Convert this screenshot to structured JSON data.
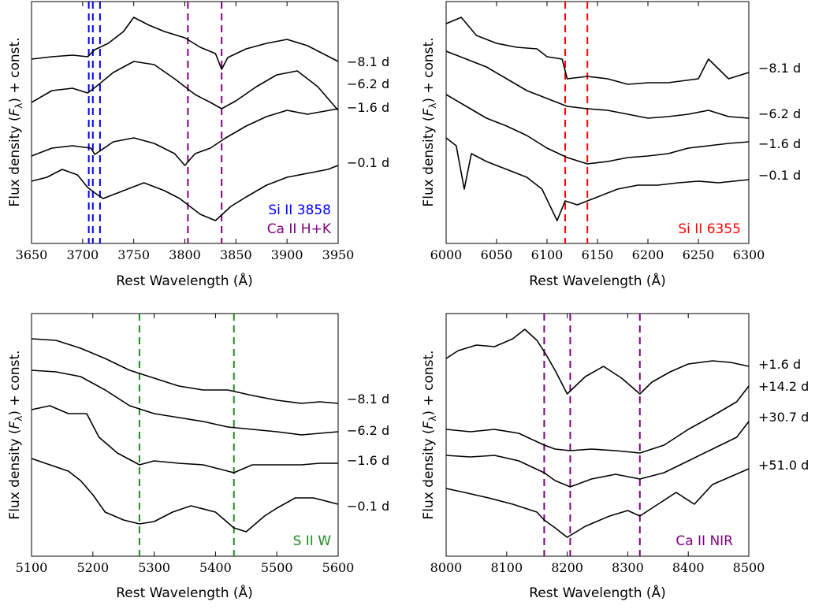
{
  "chart_data": [
    {
      "type": "line",
      "xlabel": "Rest Wavelength (Å)",
      "ylabel": "Flux density (F_λ) + const.",
      "xlim": [
        3650,
        3950
      ],
      "xticks": [
        "3650",
        "3700",
        "3750",
        "3800",
        "3850",
        "3900",
        "3950"
      ],
      "line_markers": [
        {
          "wavelength": 3706,
          "color": "#0000ff"
        },
        {
          "wavelength": 3710,
          "color": "#0000ff"
        },
        {
          "wavelength": 3717,
          "color": "#0000ff"
        },
        {
          "wavelength": 3803,
          "color": "#800080"
        },
        {
          "wavelength": 3836,
          "color": "#800080"
        }
      ],
      "annotations": [
        {
          "text": "Si II 3858",
          "color": "#0000ff"
        },
        {
          "text": "Ca II H+K",
          "color": "#800080"
        }
      ],
      "series": [
        {
          "label": "−8.1 d",
          "x": [
            3650,
            3670,
            3690,
            3705,
            3712,
            3725,
            3740,
            3750,
            3765,
            3780,
            3800,
            3815,
            3830,
            3836,
            3842,
            3860,
            3880,
            3900,
            3920,
            3950
          ],
          "y": [
            75,
            72,
            70,
            72,
            63,
            55,
            40,
            22,
            32,
            40,
            48,
            60,
            68,
            88,
            73,
            62,
            55,
            50,
            58,
            78
          ]
        },
        {
          "label": "−6.2 d",
          "x": [
            3650,
            3670,
            3690,
            3705,
            3715,
            3730,
            3750,
            3770,
            3790,
            3810,
            3825,
            3836,
            3850,
            3870,
            3890,
            3910,
            3930,
            3950
          ],
          "y": [
            130,
            115,
            112,
            118,
            108,
            92,
            78,
            82,
            100,
            120,
            130,
            138,
            128,
            110,
            95,
            90,
            110,
            140
          ]
        },
        {
          "label": "−1.6 d",
          "x": [
            3650,
            3670,
            3690,
            3708,
            3712,
            3730,
            3750,
            3770,
            3790,
            3800,
            3810,
            3825,
            3840,
            3860,
            3880,
            3900,
            3920,
            3950
          ],
          "y": [
            198,
            188,
            185,
            188,
            196,
            180,
            175,
            182,
            195,
            210,
            195,
            188,
            175,
            160,
            148,
            140,
            145,
            138
          ]
        },
        {
          "label": "−0.1 d",
          "x": [
            3650,
            3665,
            3680,
            3695,
            3705,
            3712,
            3720,
            3740,
            3760,
            3780,
            3795,
            3805,
            3815,
            3830,
            3845,
            3860,
            3880,
            3900,
            3920,
            3940,
            3950
          ],
          "y": [
            230,
            225,
            215,
            222,
            238,
            245,
            252,
            242,
            232,
            242,
            252,
            262,
            272,
            280,
            262,
            250,
            235,
            225,
            220,
            215,
            210
          ]
        }
      ]
    },
    {
      "type": "line",
      "xlabel": "Rest Wavelength (Å)",
      "ylabel": "Flux density (F_λ) + const.",
      "xlim": [
        6000,
        6300
      ],
      "xticks": [
        "6000",
        "6050",
        "6100",
        "6150",
        "6200",
        "6250",
        "6300"
      ],
      "line_markers": [
        {
          "wavelength": 6118,
          "color": "#ff0000"
        },
        {
          "wavelength": 6140,
          "color": "#ff0000"
        }
      ],
      "annotations": [
        {
          "text": "Si II 6355",
          "color": "#ff0000"
        }
      ],
      "series": [
        {
          "label": "−8.1 d",
          "x": [
            6000,
            6015,
            6030,
            6050,
            6070,
            6090,
            6100,
            6115,
            6120,
            6140,
            6160,
            6180,
            6200,
            6220,
            6250,
            6260,
            6280,
            6300
          ],
          "y": [
            30,
            22,
            45,
            55,
            60,
            62,
            72,
            75,
            100,
            97,
            100,
            107,
            105,
            105,
            100,
            75,
            100,
            92
          ]
        },
        {
          "label": "−6.2 d",
          "x": [
            6000,
            6020,
            6040,
            6060,
            6080,
            6100,
            6120,
            6140,
            6160,
            6180,
            6200,
            6220,
            6240,
            6260,
            6280,
            6300
          ],
          "y": [
            65,
            75,
            85,
            100,
            115,
            125,
            135,
            138,
            140,
            145,
            150,
            148,
            145,
            140,
            148,
            150
          ]
        },
        {
          "label": "−1.6 d",
          "x": [
            6000,
            6020,
            6040,
            6060,
            6080,
            6100,
            6120,
            6140,
            6160,
            6180,
            6200,
            6220,
            6240,
            6260,
            6280,
            6300
          ],
          "y": [
            120,
            135,
            150,
            160,
            172,
            188,
            200,
            208,
            205,
            200,
            198,
            195,
            188,
            185,
            182,
            180
          ]
        },
        {
          "label": "−0.1 d",
          "x": [
            6000,
            6010,
            6018,
            6025,
            6040,
            6060,
            6080,
            6095,
            6110,
            6118,
            6130,
            6150,
            6170,
            6190,
            6210,
            6230,
            6250,
            6270,
            6300
          ],
          "y": [
            175,
            185,
            240,
            195,
            205,
            215,
            225,
            240,
            280,
            255,
            260,
            250,
            240,
            235,
            235,
            232,
            230,
            232,
            228
          ]
        }
      ]
    },
    {
      "type": "line",
      "xlabel": "Rest Wavelength (Å)",
      "ylabel": "Flux density (F_λ) + const.",
      "xlim": [
        5100,
        5600
      ],
      "xticks": [
        "5100",
        "5200",
        "5300",
        "5400",
        "5500",
        "5600"
      ],
      "line_markers": [
        {
          "wavelength": 5276,
          "color": "#228b22"
        },
        {
          "wavelength": 5430,
          "color": "#228b22"
        }
      ],
      "annotations": [
        {
          "text": "S II W",
          "color": "#228b22"
        }
      ],
      "series": [
        {
          "label": "−8.1 d",
          "x": [
            5100,
            5140,
            5180,
            5220,
            5260,
            5300,
            5340,
            5380,
            5420,
            5460,
            5500,
            5540,
            5570,
            5600
          ],
          "y": [
            430,
            432,
            442,
            455,
            470,
            480,
            490,
            495,
            495,
            502,
            508,
            512,
            510,
            512
          ]
        },
        {
          "label": "−6.2 d",
          "x": [
            5100,
            5140,
            5180,
            5220,
            5260,
            5300,
            5340,
            5380,
            5420,
            5460,
            5500,
            5540,
            5570,
            5600
          ],
          "y": [
            470,
            472,
            478,
            495,
            515,
            525,
            530,
            535,
            542,
            545,
            548,
            552,
            550,
            548
          ]
        },
        {
          "label": "−1.6 d",
          "x": [
            5100,
            5130,
            5160,
            5190,
            5210,
            5240,
            5276,
            5300,
            5340,
            5380,
            5430,
            5460,
            5500,
            5540,
            5570,
            5600
          ],
          "y": [
            520,
            515,
            525,
            525,
            555,
            575,
            590,
            585,
            588,
            590,
            600,
            590,
            590,
            590,
            588,
            588
          ]
        },
        {
          "label": "−0.1 d",
          "x": [
            5100,
            5130,
            5160,
            5180,
            5200,
            5220,
            5250,
            5276,
            5300,
            5330,
            5360,
            5400,
            5430,
            5450,
            5480,
            5500,
            5530,
            5560,
            5600
          ],
          "y": [
            582,
            590,
            598,
            610,
            628,
            650,
            660,
            665,
            662,
            650,
            642,
            650,
            670,
            675,
            655,
            645,
            632,
            632,
            640
          ]
        }
      ]
    },
    {
      "type": "line",
      "xlabel": "Rest Wavelength (Å)",
      "ylabel": "Flux density (F_λ) + const.",
      "xlim": [
        8000,
        8500
      ],
      "xticks": [
        "8000",
        "8100",
        "8200",
        "8300",
        "8400",
        "8500"
      ],
      "line_markers": [
        {
          "wavelength": 8162,
          "color": "#800080"
        },
        {
          "wavelength": 8205,
          "color": "#800080"
        },
        {
          "wavelength": 8320,
          "color": "#800080"
        }
      ],
      "annotations": [
        {
          "text": "Ca II NIR",
          "color": "#800080"
        }
      ],
      "series": [
        {
          "label": "+1.6 d",
          "x": [
            8000,
            8020,
            8050,
            8080,
            8110,
            8130,
            8150,
            8165,
            8180,
            8200,
            8230,
            8260,
            8290,
            8320,
            8340,
            8370,
            8400,
            8440,
            8470,
            8500
          ],
          "y": [
            455,
            445,
            438,
            440,
            430,
            418,
            432,
            450,
            470,
            500,
            478,
            465,
            480,
            500,
            485,
            472,
            462,
            458,
            460,
            465
          ]
        },
        {
          "label": "+14.2 d",
          "x": [
            8000,
            8040,
            8080,
            8120,
            8162,
            8180,
            8205,
            8240,
            8280,
            8320,
            8360,
            8400,
            8440,
            8480,
            8500
          ],
          "y": [
            545,
            548,
            545,
            550,
            565,
            570,
            572,
            570,
            572,
            575,
            565,
            545,
            528,
            510,
            490
          ]
        },
        {
          "label": "+30.7 d",
          "x": [
            8000,
            8040,
            8080,
            8120,
            8162,
            8180,
            8205,
            8240,
            8280,
            8320,
            8360,
            8400,
            8440,
            8480,
            8500
          ],
          "y": [
            578,
            580,
            578,
            585,
            600,
            610,
            618,
            608,
            602,
            608,
            600,
            585,
            570,
            555,
            535
          ]
        },
        {
          "label": "+51.0 d",
          "x": [
            8000,
            8030,
            8070,
            8110,
            8150,
            8162,
            8180,
            8200,
            8230,
            8270,
            8300,
            8320,
            8350,
            8380,
            8410,
            8440,
            8470,
            8500
          ],
          "y": [
            620,
            625,
            632,
            640,
            650,
            660,
            670,
            682,
            668,
            655,
            648,
            655,
            640,
            625,
            640,
            615,
            605,
            595
          ]
        }
      ]
    }
  ]
}
